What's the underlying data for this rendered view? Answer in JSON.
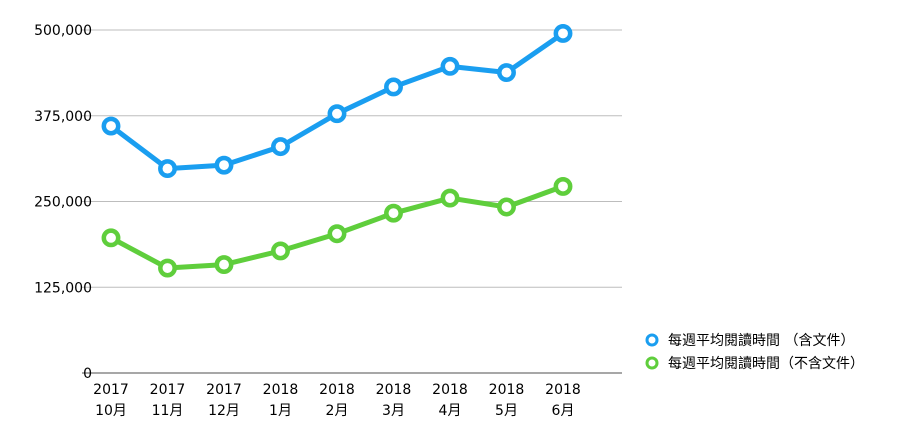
{
  "chart_data": {
    "type": "line",
    "title": "",
    "xlabel": "",
    "ylabel": "",
    "categories": [
      [
        "2017",
        "10月"
      ],
      [
        "2017",
        "11月"
      ],
      [
        "2017",
        "12月"
      ],
      [
        "2018",
        "1月"
      ],
      [
        "2018",
        "2月"
      ],
      [
        "2018",
        "3月"
      ],
      [
        "2018",
        "4月"
      ],
      [
        "2018",
        "5月"
      ],
      [
        "2018",
        "6月"
      ]
    ],
    "ylim": [
      0,
      500000
    ],
    "yticks": [
      0,
      125000,
      250000,
      375000,
      500000
    ],
    "ytick_labels": [
      "0",
      "125,000",
      "250,000",
      "375,000",
      "500,000"
    ],
    "grid": true,
    "legend_position": "right",
    "series": [
      {
        "name": "每週平均閱讀時間 （含文件）",
        "color": "#1a9ef0",
        "values": [
          360000,
          298000,
          303000,
          330000,
          378000,
          417000,
          447000,
          438000,
          495000
        ]
      },
      {
        "name": "每週平均閱讀時間（不含文件）",
        "color": "#5fce3c",
        "values": [
          197000,
          153000,
          158000,
          178000,
          203000,
          233000,
          255000,
          242000,
          272000
        ]
      }
    ]
  }
}
